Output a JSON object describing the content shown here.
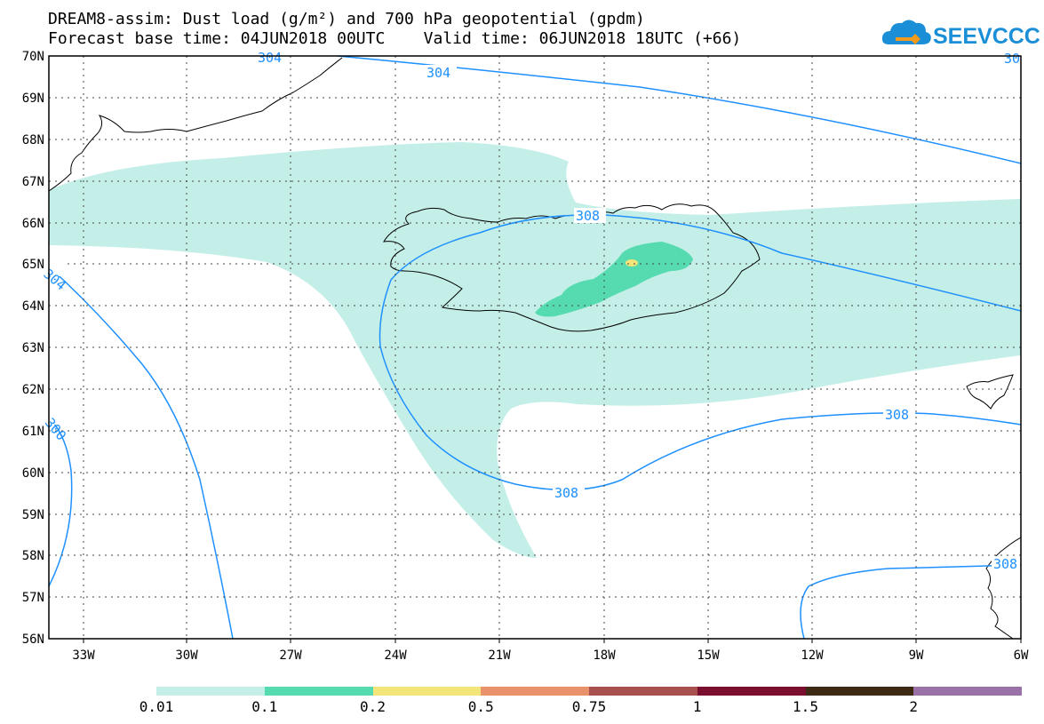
{
  "title": {
    "line1": "DREAM8-assim: Dust load (g/m²) and 700 hPa geopotential (gpdm)",
    "line2": "Forecast base time: 04JUN2018 00UTC    Valid time: 06JUN2018 18UTC (+66)"
  },
  "logo": {
    "text": "SEEVCCC",
    "icon": "cloud-icon",
    "color": "#1a8fd8"
  },
  "map": {
    "lat_labels": [
      "70N",
      "69N",
      "68N",
      "67N",
      "66N",
      "65N",
      "64N",
      "63N",
      "62N",
      "61N",
      "60N",
      "59N",
      "58N",
      "57N",
      "56N"
    ],
    "lon_labels": [
      "33W",
      "30W",
      "27W",
      "24W",
      "21W",
      "18W",
      "15W",
      "12W",
      "9W",
      "6W"
    ],
    "contour_labels": [
      "304",
      "304",
      "30",
      "304",
      "308",
      "308",
      "308",
      "308",
      "300"
    ],
    "contour_color": "#1e90ff"
  },
  "legend": {
    "colors": [
      "#c4efe8",
      "#56dbb0",
      "#f4e57a",
      "#e8916a",
      "#a85050",
      "#7a0e2e",
      "#3c2a14",
      "#9a72a8"
    ],
    "labels": [
      "0.01",
      "0.1",
      "0.2",
      "0.5",
      "0.75",
      "1",
      "1.5",
      "2"
    ]
  }
}
